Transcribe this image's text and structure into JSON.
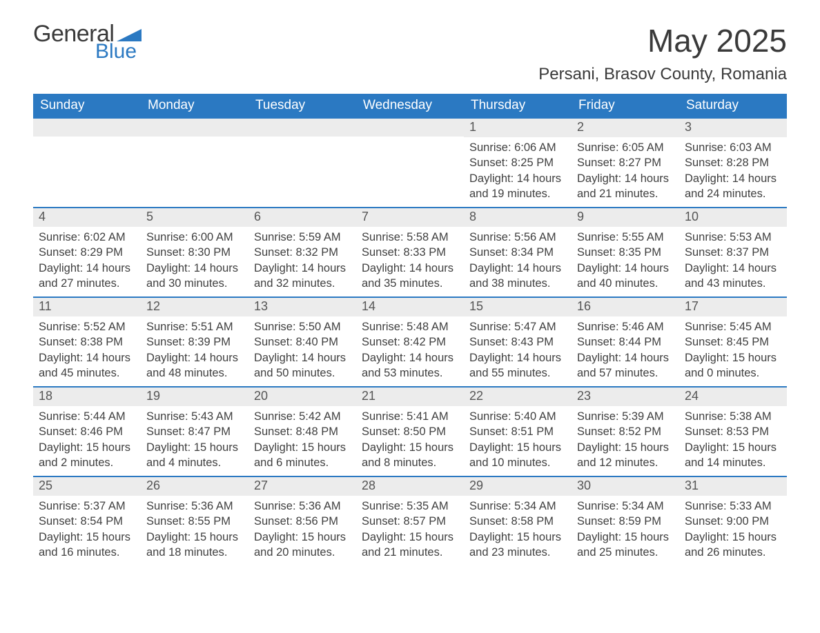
{
  "logo": {
    "word1": "General",
    "word2": "Blue"
  },
  "header": {
    "month_title": "May 2025",
    "location": "Persani, Brasov County, Romania"
  },
  "colors": {
    "brand_blue": "#2b79c2",
    "bar_bg": "#ececec",
    "text": "#3a3a3a",
    "body_text": "#3f3f3f"
  },
  "dow": [
    "Sunday",
    "Monday",
    "Tuesday",
    "Wednesday",
    "Thursday",
    "Friday",
    "Saturday"
  ],
  "weeks": [
    [
      {
        "blank": true
      },
      {
        "blank": true
      },
      {
        "blank": true
      },
      {
        "blank": true
      },
      {
        "n": "1",
        "sunrise": "Sunrise: 6:06 AM",
        "sunset": "Sunset: 8:25 PM",
        "dl1": "Daylight: 14 hours",
        "dl2": "and 19 minutes."
      },
      {
        "n": "2",
        "sunrise": "Sunrise: 6:05 AM",
        "sunset": "Sunset: 8:27 PM",
        "dl1": "Daylight: 14 hours",
        "dl2": "and 21 minutes."
      },
      {
        "n": "3",
        "sunrise": "Sunrise: 6:03 AM",
        "sunset": "Sunset: 8:28 PM",
        "dl1": "Daylight: 14 hours",
        "dl2": "and 24 minutes."
      }
    ],
    [
      {
        "n": "4",
        "sunrise": "Sunrise: 6:02 AM",
        "sunset": "Sunset: 8:29 PM",
        "dl1": "Daylight: 14 hours",
        "dl2": "and 27 minutes."
      },
      {
        "n": "5",
        "sunrise": "Sunrise: 6:00 AM",
        "sunset": "Sunset: 8:30 PM",
        "dl1": "Daylight: 14 hours",
        "dl2": "and 30 minutes."
      },
      {
        "n": "6",
        "sunrise": "Sunrise: 5:59 AM",
        "sunset": "Sunset: 8:32 PM",
        "dl1": "Daylight: 14 hours",
        "dl2": "and 32 minutes."
      },
      {
        "n": "7",
        "sunrise": "Sunrise: 5:58 AM",
        "sunset": "Sunset: 8:33 PM",
        "dl1": "Daylight: 14 hours",
        "dl2": "and 35 minutes."
      },
      {
        "n": "8",
        "sunrise": "Sunrise: 5:56 AM",
        "sunset": "Sunset: 8:34 PM",
        "dl1": "Daylight: 14 hours",
        "dl2": "and 38 minutes."
      },
      {
        "n": "9",
        "sunrise": "Sunrise: 5:55 AM",
        "sunset": "Sunset: 8:35 PM",
        "dl1": "Daylight: 14 hours",
        "dl2": "and 40 minutes."
      },
      {
        "n": "10",
        "sunrise": "Sunrise: 5:53 AM",
        "sunset": "Sunset: 8:37 PM",
        "dl1": "Daylight: 14 hours",
        "dl2": "and 43 minutes."
      }
    ],
    [
      {
        "n": "11",
        "sunrise": "Sunrise: 5:52 AM",
        "sunset": "Sunset: 8:38 PM",
        "dl1": "Daylight: 14 hours",
        "dl2": "and 45 minutes."
      },
      {
        "n": "12",
        "sunrise": "Sunrise: 5:51 AM",
        "sunset": "Sunset: 8:39 PM",
        "dl1": "Daylight: 14 hours",
        "dl2": "and 48 minutes."
      },
      {
        "n": "13",
        "sunrise": "Sunrise: 5:50 AM",
        "sunset": "Sunset: 8:40 PM",
        "dl1": "Daylight: 14 hours",
        "dl2": "and 50 minutes."
      },
      {
        "n": "14",
        "sunrise": "Sunrise: 5:48 AM",
        "sunset": "Sunset: 8:42 PM",
        "dl1": "Daylight: 14 hours",
        "dl2": "and 53 minutes."
      },
      {
        "n": "15",
        "sunrise": "Sunrise: 5:47 AM",
        "sunset": "Sunset: 8:43 PM",
        "dl1": "Daylight: 14 hours",
        "dl2": "and 55 minutes."
      },
      {
        "n": "16",
        "sunrise": "Sunrise: 5:46 AM",
        "sunset": "Sunset: 8:44 PM",
        "dl1": "Daylight: 14 hours",
        "dl2": "and 57 minutes."
      },
      {
        "n": "17",
        "sunrise": "Sunrise: 5:45 AM",
        "sunset": "Sunset: 8:45 PM",
        "dl1": "Daylight: 15 hours",
        "dl2": "and 0 minutes."
      }
    ],
    [
      {
        "n": "18",
        "sunrise": "Sunrise: 5:44 AM",
        "sunset": "Sunset: 8:46 PM",
        "dl1": "Daylight: 15 hours",
        "dl2": "and 2 minutes."
      },
      {
        "n": "19",
        "sunrise": "Sunrise: 5:43 AM",
        "sunset": "Sunset: 8:47 PM",
        "dl1": "Daylight: 15 hours",
        "dl2": "and 4 minutes."
      },
      {
        "n": "20",
        "sunrise": "Sunrise: 5:42 AM",
        "sunset": "Sunset: 8:48 PM",
        "dl1": "Daylight: 15 hours",
        "dl2": "and 6 minutes."
      },
      {
        "n": "21",
        "sunrise": "Sunrise: 5:41 AM",
        "sunset": "Sunset: 8:50 PM",
        "dl1": "Daylight: 15 hours",
        "dl2": "and 8 minutes."
      },
      {
        "n": "22",
        "sunrise": "Sunrise: 5:40 AM",
        "sunset": "Sunset: 8:51 PM",
        "dl1": "Daylight: 15 hours",
        "dl2": "and 10 minutes."
      },
      {
        "n": "23",
        "sunrise": "Sunrise: 5:39 AM",
        "sunset": "Sunset: 8:52 PM",
        "dl1": "Daylight: 15 hours",
        "dl2": "and 12 minutes."
      },
      {
        "n": "24",
        "sunrise": "Sunrise: 5:38 AM",
        "sunset": "Sunset: 8:53 PM",
        "dl1": "Daylight: 15 hours",
        "dl2": "and 14 minutes."
      }
    ],
    [
      {
        "n": "25",
        "sunrise": "Sunrise: 5:37 AM",
        "sunset": "Sunset: 8:54 PM",
        "dl1": "Daylight: 15 hours",
        "dl2": "and 16 minutes."
      },
      {
        "n": "26",
        "sunrise": "Sunrise: 5:36 AM",
        "sunset": "Sunset: 8:55 PM",
        "dl1": "Daylight: 15 hours",
        "dl2": "and 18 minutes."
      },
      {
        "n": "27",
        "sunrise": "Sunrise: 5:36 AM",
        "sunset": "Sunset: 8:56 PM",
        "dl1": "Daylight: 15 hours",
        "dl2": "and 20 minutes."
      },
      {
        "n": "28",
        "sunrise": "Sunrise: 5:35 AM",
        "sunset": "Sunset: 8:57 PM",
        "dl1": "Daylight: 15 hours",
        "dl2": "and 21 minutes."
      },
      {
        "n": "29",
        "sunrise": "Sunrise: 5:34 AM",
        "sunset": "Sunset: 8:58 PM",
        "dl1": "Daylight: 15 hours",
        "dl2": "and 23 minutes."
      },
      {
        "n": "30",
        "sunrise": "Sunrise: 5:34 AM",
        "sunset": "Sunset: 8:59 PM",
        "dl1": "Daylight: 15 hours",
        "dl2": "and 25 minutes."
      },
      {
        "n": "31",
        "sunrise": "Sunrise: 5:33 AM",
        "sunset": "Sunset: 9:00 PM",
        "dl1": "Daylight: 15 hours",
        "dl2": "and 26 minutes."
      }
    ]
  ]
}
